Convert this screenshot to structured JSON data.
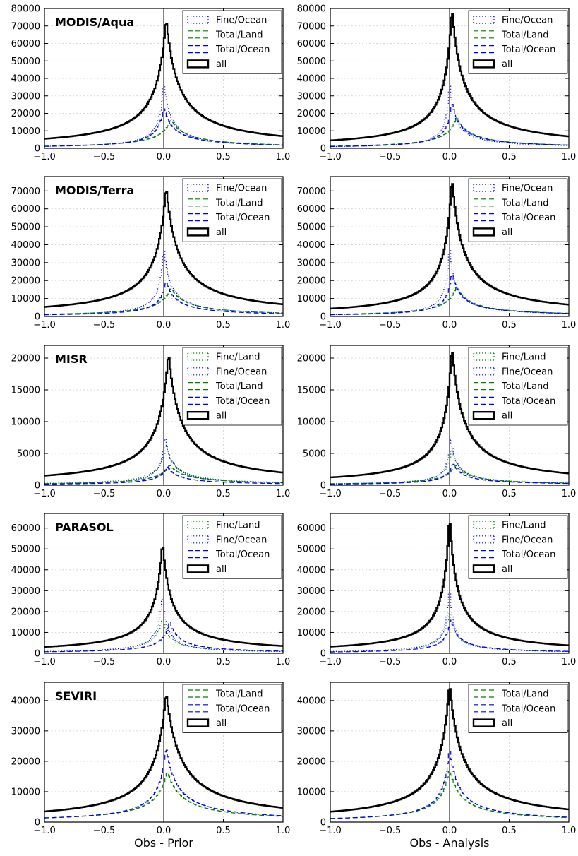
{
  "figure": {
    "xlabels": [
      "Obs - Prior",
      "Obs - Analysis"
    ]
  },
  "styles": {
    "Fine/Ocean": {
      "color": "#0000ff",
      "dash": "1.2,2.8",
      "width": 1.2
    },
    "Fine/Land": {
      "color": "#008000",
      "dash": "1.2,2.8",
      "width": 1.2
    },
    "Total/Land": {
      "color": "#008000",
      "dash": "7,4",
      "width": 1.2
    },
    "Total/Ocean": {
      "color": "#0000ff",
      "dash": "7,4",
      "width": 1.2
    },
    "all": {
      "color": "#000000",
      "dash": "",
      "width": 2.4
    }
  },
  "chart_data": [
    {
      "type": "line",
      "panel": "MODIS/Aqua (Obs - Prior)",
      "title": "MODIS/Aqua",
      "xlabel": "",
      "xlim": [
        -1.0,
        1.0
      ],
      "ylim": [
        0,
        80000
      ],
      "xticks": [
        -1.0,
        -0.5,
        0.0,
        0.5,
        1.0
      ],
      "yticks": [
        0,
        10000,
        20000,
        30000,
        40000,
        50000,
        60000,
        70000,
        80000
      ],
      "grid": true,
      "legend_position": "top-right",
      "series": [
        {
          "name": "Fine/Ocean",
          "peak_x": 0.0,
          "peak": 40000,
          "width_left": 0.03,
          "width_right": 0.05
        },
        {
          "name": "Total/Land",
          "peak_x": 0.06,
          "peak": 16500,
          "width_left": 0.09,
          "width_right": 0.13
        },
        {
          "name": "Total/Ocean",
          "peak_x": 0.0,
          "peak": 24000,
          "width_left": 0.05,
          "width_right": 0.08
        },
        {
          "name": "all",
          "peak_x": 0.02,
          "peak": 75000,
          "width_left": 0.08,
          "width_right": 0.1
        }
      ]
    },
    {
      "type": "line",
      "panel": "MODIS/Aqua (Obs - Analysis)",
      "title": "",
      "xlabel": "",
      "xlim": [
        -1.0,
        1.0
      ],
      "ylim": [
        0,
        80000
      ],
      "xticks": [
        -1.0,
        -0.5,
        0.0,
        0.5,
        1.0
      ],
      "yticks": [
        0,
        10000,
        20000,
        30000,
        40000,
        50000,
        60000,
        70000,
        80000
      ],
      "grid": true,
      "legend_position": "top-right",
      "series": [
        {
          "name": "Fine/Ocean",
          "peak_x": 0.0,
          "peak": 40000,
          "width_left": 0.025,
          "width_right": 0.04
        },
        {
          "name": "Total/Land",
          "peak_x": 0.06,
          "peak": 18000,
          "width_left": 0.08,
          "width_right": 0.11
        },
        {
          "name": "Total/Ocean",
          "peak_x": 0.02,
          "peak": 27000,
          "width_left": 0.04,
          "width_right": 0.07
        },
        {
          "name": "all",
          "peak_x": 0.02,
          "peak": 81000,
          "width_left": 0.06,
          "width_right": 0.09
        }
      ]
    },
    {
      "type": "line",
      "panel": "MODIS/Terra (Obs - Prior)",
      "title": "MODIS/Terra",
      "xlabel": "",
      "xlim": [
        -1.0,
        1.0
      ],
      "ylim": [
        0,
        78000
      ],
      "xticks": [
        -1.0,
        -0.5,
        0.0,
        0.5,
        1.0
      ],
      "yticks": [
        0,
        10000,
        20000,
        30000,
        40000,
        50000,
        60000,
        70000
      ],
      "grid": true,
      "legend_position": "top-right",
      "series": [
        {
          "name": "Fine/Ocean",
          "peak_x": 0.0,
          "peak": 40000,
          "width_left": 0.03,
          "width_right": 0.05
        },
        {
          "name": "Total/Land",
          "peak_x": 0.06,
          "peak": 16000,
          "width_left": 0.09,
          "width_right": 0.13
        },
        {
          "name": "Total/Ocean",
          "peak_x": 0.02,
          "peak": 20000,
          "width_left": 0.05,
          "width_right": 0.08
        },
        {
          "name": "all",
          "peak_x": 0.02,
          "peak": 73000,
          "width_left": 0.08,
          "width_right": 0.1
        }
      ]
    },
    {
      "type": "line",
      "panel": "MODIS/Terra (Obs - Analysis)",
      "title": "",
      "xlabel": "",
      "xlim": [
        -1.0,
        1.0
      ],
      "ylim": [
        0,
        78000
      ],
      "xticks": [
        -1.0,
        -0.5,
        0.0,
        0.5,
        1.0
      ],
      "yticks": [
        0,
        10000,
        20000,
        30000,
        40000,
        50000,
        60000,
        70000
      ],
      "grid": true,
      "legend_position": "top-right",
      "series": [
        {
          "name": "Fine/Ocean",
          "peak_x": 0.0,
          "peak": 42000,
          "width_left": 0.025,
          "width_right": 0.04
        },
        {
          "name": "Total/Land",
          "peak_x": 0.06,
          "peak": 17000,
          "width_left": 0.08,
          "width_right": 0.11
        },
        {
          "name": "Total/Ocean",
          "peak_x": 0.02,
          "peak": 25000,
          "width_left": 0.04,
          "width_right": 0.07
        },
        {
          "name": "all",
          "peak_x": 0.02,
          "peak": 78000,
          "width_left": 0.06,
          "width_right": 0.09
        }
      ]
    },
    {
      "type": "line",
      "panel": "MISR (Obs - Prior)",
      "title": "MISR",
      "xlabel": "",
      "xlim": [
        -1.0,
        1.0
      ],
      "ylim": [
        0,
        22000
      ],
      "xticks": [
        -1.0,
        -0.5,
        0.0,
        0.5,
        1.0
      ],
      "yticks": [
        0,
        5000,
        10000,
        15000,
        20000
      ],
      "grid": true,
      "legend_position": "top-right",
      "series": [
        {
          "name": "Fine/Land",
          "peak_x": 0.02,
          "peak": 6500,
          "width_left": 0.05,
          "width_right": 0.07
        },
        {
          "name": "Fine/Ocean",
          "peak_x": 0.01,
          "peak": 8000,
          "width_left": 0.03,
          "width_right": 0.05
        },
        {
          "name": "Total/Land",
          "peak_x": 0.05,
          "peak": 3200,
          "width_left": 0.09,
          "width_right": 0.13
        },
        {
          "name": "Total/Ocean",
          "peak_x": 0.03,
          "peak": 3000,
          "width_left": 0.06,
          "width_right": 0.09
        },
        {
          "name": "all",
          "peak_x": 0.04,
          "peak": 21000,
          "width_left": 0.08,
          "width_right": 0.1
        }
      ]
    },
    {
      "type": "line",
      "panel": "MISR (Obs - Analysis)",
      "title": "",
      "xlabel": "",
      "xlim": [
        -1.0,
        1.0
      ],
      "ylim": [
        0,
        22000
      ],
      "xticks": [
        -1.0,
        -0.5,
        0.0,
        0.5,
        1.0
      ],
      "yticks": [
        0,
        5000,
        10000,
        15000,
        20000
      ],
      "grid": true,
      "legend_position": "top-right",
      "series": [
        {
          "name": "Fine/Land",
          "peak_x": 0.02,
          "peak": 6000,
          "width_left": 0.04,
          "width_right": 0.06
        },
        {
          "name": "Fine/Ocean",
          "peak_x": 0.01,
          "peak": 8000,
          "width_left": 0.025,
          "width_right": 0.04
        },
        {
          "name": "Total/Land",
          "peak_x": 0.05,
          "peak": 3200,
          "width_left": 0.08,
          "width_right": 0.11
        },
        {
          "name": "Total/Ocean",
          "peak_x": 0.03,
          "peak": 3500,
          "width_left": 0.05,
          "width_right": 0.08
        },
        {
          "name": "all",
          "peak_x": 0.02,
          "peak": 22000,
          "width_left": 0.06,
          "width_right": 0.09
        }
      ]
    },
    {
      "type": "line",
      "panel": "PARASOL (Obs - Prior)",
      "title": "PARASOL",
      "xlabel": "",
      "xlim": [
        -1.0,
        1.0
      ],
      "ylim": [
        0,
        67000
      ],
      "xticks": [
        -1.0,
        -0.5,
        0.0,
        0.5,
        1.0
      ],
      "yticks": [
        0,
        10000,
        20000,
        30000,
        40000,
        50000,
        60000
      ],
      "grid": true,
      "legend_position": "top-right",
      "series": [
        {
          "name": "Fine/Land",
          "peak_x": -0.01,
          "peak": 18000,
          "width_left": 0.05,
          "width_right": 0.05
        },
        {
          "name": "Fine/Ocean",
          "peak_x": -0.01,
          "peak": 30000,
          "width_left": 0.03,
          "width_right": 0.03
        },
        {
          "name": "Total/Ocean",
          "peak_x": 0.05,
          "peak": 16000,
          "width_left": 0.05,
          "width_right": 0.07
        },
        {
          "name": "all",
          "peak_x": -0.01,
          "peak": 54000,
          "width_left": 0.06,
          "width_right": 0.07
        }
      ]
    },
    {
      "type": "line",
      "panel": "PARASOL (Obs - Analysis)",
      "title": "",
      "xlabel": "",
      "xlim": [
        -1.0,
        1.0
      ],
      "ylim": [
        0,
        67000
      ],
      "xticks": [
        -1.0,
        -0.5,
        0.0,
        0.5,
        1.0
      ],
      "yticks": [
        0,
        10000,
        20000,
        30000,
        40000,
        50000,
        60000
      ],
      "grid": true,
      "legend_position": "top-right",
      "series": [
        {
          "name": "Fine/Land",
          "peak_x": 0.0,
          "peak": 22000,
          "width_left": 0.04,
          "width_right": 0.04
        },
        {
          "name": "Fine/Ocean",
          "peak_x": 0.0,
          "peak": 35000,
          "width_left": 0.025,
          "width_right": 0.025
        },
        {
          "name": "Total/Ocean",
          "peak_x": 0.01,
          "peak": 17000,
          "width_left": 0.04,
          "width_right": 0.06
        },
        {
          "name": "all",
          "peak_x": 0.0,
          "peak": 67000,
          "width_left": 0.05,
          "width_right": 0.06
        }
      ]
    },
    {
      "type": "line",
      "panel": "SEVIRI (Obs - Prior)",
      "title": "SEVIRI",
      "xlabel": "Obs - Prior",
      "xlim": [
        -1.0,
        1.0
      ],
      "ylim": [
        0,
        46000
      ],
      "xticks": [
        -1.0,
        -0.5,
        0.0,
        0.5,
        1.0
      ],
      "yticks": [
        0,
        10000,
        20000,
        30000,
        40000
      ],
      "grid": true,
      "legend_position": "top-right",
      "series": [
        {
          "name": "Total/Land",
          "peak_x": 0.03,
          "peak": 17000,
          "width_left": 0.09,
          "width_right": 0.12
        },
        {
          "name": "Total/Ocean",
          "peak_x": 0.02,
          "peak": 25000,
          "width_left": 0.06,
          "width_right": 0.09
        },
        {
          "name": "all",
          "peak_x": 0.02,
          "peak": 43000,
          "width_left": 0.09,
          "width_right": 0.12
        }
      ]
    },
    {
      "type": "line",
      "panel": "SEVIRI (Obs - Analysis)",
      "title": "",
      "xlabel": "Obs - Analysis",
      "xlim": [
        -1.0,
        1.0
      ],
      "ylim": [
        0,
        46000
      ],
      "xticks": [
        -1.0,
        -0.5,
        0.0,
        0.5,
        1.0
      ],
      "yticks": [
        0,
        10000,
        20000,
        30000,
        40000
      ],
      "grid": true,
      "legend_position": "top-right",
      "series": [
        {
          "name": "Total/Land",
          "peak_x": 0.0,
          "peak": 18000,
          "width_left": 0.07,
          "width_right": 0.09
        },
        {
          "name": "Total/Ocean",
          "peak_x": 0.0,
          "peak": 25000,
          "width_left": 0.05,
          "width_right": 0.07
        },
        {
          "name": "all",
          "peak_x": 0.0,
          "peak": 46000,
          "width_left": 0.08,
          "width_right": 0.1
        }
      ]
    }
  ]
}
